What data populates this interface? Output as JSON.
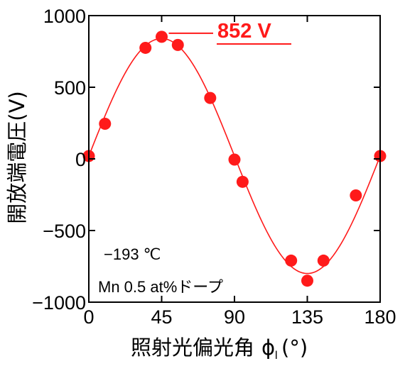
{
  "chart_data": {
    "type": "scatter",
    "xlabel": "照射光偏光角",
    "xlabel_symbol": "ϕ",
    "xlabel_subscript": "l",
    "xlabel_unit": "(°)",
    "ylabel": "開放端電圧(V)",
    "xlim": [
      0,
      180
    ],
    "ylim": [
      -1000,
      1000
    ],
    "xticks": [
      0,
      45,
      90,
      135,
      180
    ],
    "xtick_labels": [
      "0",
      "45",
      "90",
      "135",
      "180"
    ],
    "yticks": [
      -1000,
      -500,
      0,
      500,
      1000
    ],
    "ytick_labels": [
      "−1000",
      "−500",
      "0",
      "500",
      "1000"
    ],
    "grid": false,
    "series": [
      {
        "values": [
          {
            "x": 0,
            "y": 20
          },
          {
            "x": 10,
            "y": 245
          },
          {
            "x": 35,
            "y": 775
          },
          {
            "x": 45,
            "y": 852
          },
          {
            "x": 55,
            "y": 795
          },
          {
            "x": 75,
            "y": 425
          },
          {
            "x": 90,
            "y": -5
          },
          {
            "x": 95,
            "y": -160
          },
          {
            "x": 125,
            "y": -710
          },
          {
            "x": 135,
            "y": -850
          },
          {
            "x": 145,
            "y": -710
          },
          {
            "x": 165,
            "y": -255
          },
          {
            "x": 180,
            "y": 20
          }
        ]
      }
    ],
    "fit_curve": {
      "amplitude": 820,
      "offset": 20,
      "period_deg": 180
    },
    "peak_label": "852 V",
    "annotations": [
      "−193 ℃",
      "Mn 0.5 at%ドープ"
    ],
    "colors": {
      "series": "#ff1a1a",
      "axis": "#000000"
    }
  }
}
